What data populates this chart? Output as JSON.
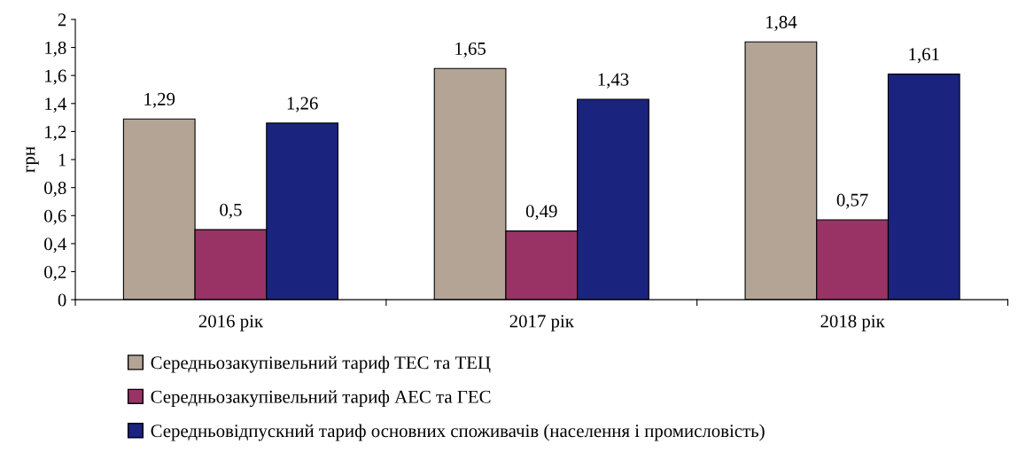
{
  "chart_data": {
    "type": "bar",
    "ylabel": "грн",
    "categories": [
      "2016 рік",
      "2017 рік",
      "2018 рік"
    ],
    "series": [
      {
        "name": "Середньозакупівельний тариф ТЕС та ТЕЦ",
        "color": "#b3a496",
        "values": [
          1.29,
          1.65,
          1.84
        ],
        "value_labels": [
          "1,29",
          "1,65",
          "1,84"
        ]
      },
      {
        "name": "Середньозакупівельний тариф АЕС та ГЕС",
        "color": "#993366",
        "values": [
          0.5,
          0.49,
          0.57
        ],
        "value_labels": [
          "0,5",
          "0,49",
          "0,57"
        ]
      },
      {
        "name": "Середньовідпускний тариф основних споживачів (населення і промисловість)",
        "color": "#1a237e",
        "values": [
          1.26,
          1.43,
          1.61
        ],
        "value_labels": [
          "1,26",
          "1,43",
          "1,61"
        ]
      }
    ],
    "ylim": [
      0,
      2
    ],
    "yticks": [
      0,
      {
        "value": 0.2,
        "label": "0,2"
      },
      {
        "value": 0.4,
        "label": "0,4"
      },
      {
        "value": 0.6,
        "label": "0,6"
      },
      {
        "value": 0.8,
        "label": "0,8"
      },
      1,
      {
        "value": 1.2,
        "label": "1,2"
      },
      {
        "value": 1.4,
        "label": "1,4"
      },
      {
        "value": 1.6,
        "label": "1,6"
      },
      {
        "value": 1.8,
        "label": "1,8"
      },
      2
    ],
    "grid": false,
    "legend": "bottom"
  }
}
